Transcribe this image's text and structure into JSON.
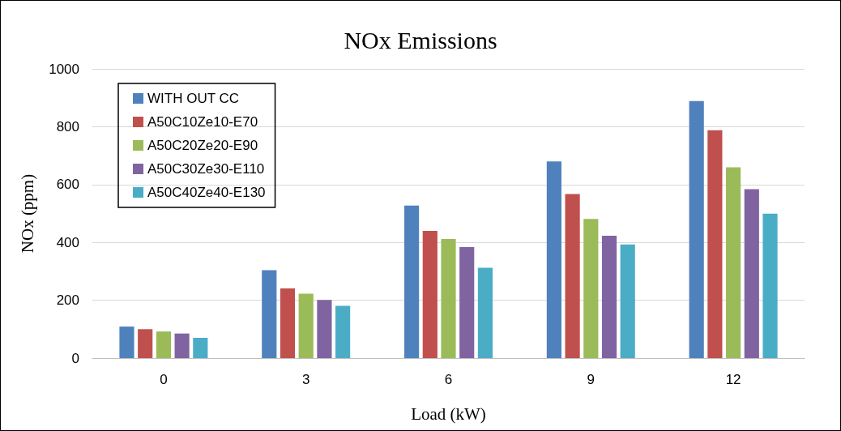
{
  "chart_data": {
    "type": "bar",
    "title": "NOx Emissions",
    "xlabel": "Load (kW)",
    "ylabel": "NOx (ppm)",
    "categories": [
      "0",
      "3",
      "6",
      "9",
      "12"
    ],
    "series": [
      {
        "name": "WITH OUT CC",
        "color": "#4f81bd",
        "values": [
          109,
          304,
          527,
          680,
          889
        ]
      },
      {
        "name": "A50C10Ze10-E70",
        "color": "#c0504d",
        "values": [
          100,
          241,
          440,
          567,
          788
        ]
      },
      {
        "name": "A50C20Ze20-E90",
        "color": "#9bbb59",
        "values": [
          92,
          223,
          412,
          481,
          660
        ]
      },
      {
        "name": "A50C30Ze30-E110",
        "color": "#8064a2",
        "values": [
          85,
          201,
          384,
          423,
          584
        ]
      },
      {
        "name": "A50C40Ze40-E130",
        "color": "#4bacc6",
        "values": [
          70,
          181,
          312,
          393,
          499
        ]
      }
    ],
    "ylim": [
      0,
      1000
    ],
    "yticks": [
      0,
      200,
      400,
      600,
      800,
      1000
    ],
    "grid": "y",
    "legend": "top left"
  }
}
